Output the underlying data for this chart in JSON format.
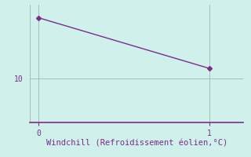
{
  "x": [
    0,
    1
  ],
  "y": [
    17.0,
    11.2
  ],
  "line_color": "#7b2d8b",
  "marker": "D",
  "marker_size": 3,
  "background_color": "#cff0eb",
  "grid_color": "#9ab8b5",
  "xlabel": "Windchill (Refroidissement éolien,°C)",
  "xlabel_color": "#7b2d8b",
  "xlabel_fontsize": 7.5,
  "tick_color": "#7b2d8b",
  "tick_fontsize": 7,
  "yticks": [
    10
  ],
  "xticks": [
    0,
    1
  ],
  "xlim": [
    -0.05,
    1.2
  ],
  "ylim": [
    5.0,
    18.5
  ],
  "spine_color": "#7b2d8b",
  "figsize": [
    3.2,
    2.0
  ],
  "dpi": 100
}
